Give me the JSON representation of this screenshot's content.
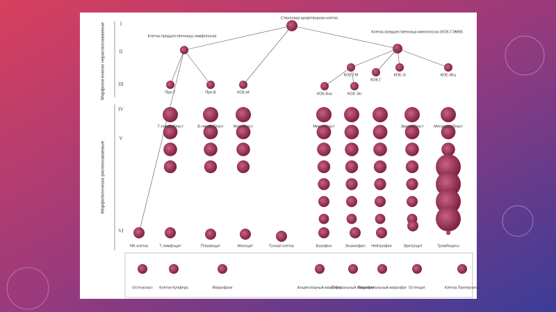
{
  "slide": {
    "levels": [
      "I",
      "II",
      "III",
      "IV",
      "V",
      "VI"
    ],
    "side_labels": [
      "Морфологически нераспознаваемые",
      "Морфологически распознаваемые"
    ],
    "stem": "Стволовая кроветворная клетка",
    "lymphoid": "Клетка-предшественница лимфопоэза",
    "myeloid": "Клетка-предшественница миелопоэза (КОЕ-ГЭММ)",
    "progenitors": [
      "Пре-Т",
      "Пре-В",
      "КОЕ-М",
      "КОЕ-ГМ",
      "КОЕ-Г",
      "КОЕ-Э",
      "КОЕ-Мгц",
      "КОЕ-Баз",
      "КОЕ-Эо"
    ],
    "blasts": [
      "Т-лимфобласт",
      "В-лимфобласт",
      "Монобласт",
      "Миелобласт",
      "Эритробласт",
      "Мегакариобласт"
    ],
    "mature": [
      "NK-клетка",
      "Т-лимфоцит",
      "Плазмоцит",
      "Моноцит",
      "Тучная клетка",
      "Базофил",
      "Эозинофил",
      "Нейтрофил",
      "Эритроцит",
      "Тромбоциты"
    ],
    "tissue": [
      "Остеокласт",
      "Клетки Купфера",
      "Макрофаги",
      "Альвеолярный макрофаг",
      "Плевральный макрофаг",
      "Перитонеальный макрофаг",
      "Остеоцит",
      "Клетка Лангерганса"
    ]
  }
}
